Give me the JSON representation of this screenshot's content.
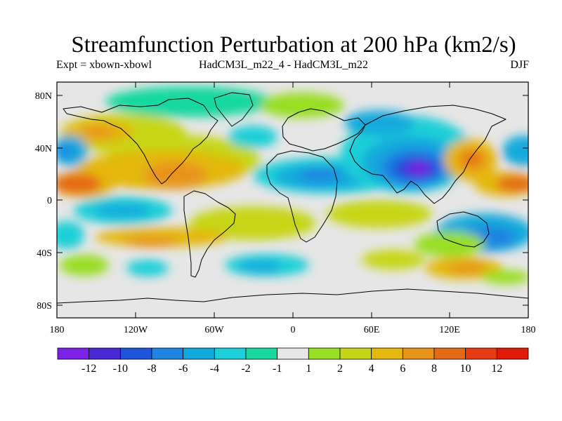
{
  "title": "Streamfunction Perturbation at 200 hPa (km2/s)",
  "subtitle": {
    "left": "Expt = xbown-xbowl",
    "center": "HadCM3L_m22_4 - HadCM3L_m22",
    "right": "DJF"
  },
  "axes": {
    "lat_labels": [
      "80N",
      "40N",
      "0",
      "40S",
      "80S"
    ],
    "lon_labels": [
      "180",
      "120W",
      "60W",
      "0",
      "60E",
      "120E",
      "180"
    ]
  },
  "colorbar": {
    "labels": [
      "-12",
      "-10",
      "-8",
      "-6",
      "-4",
      "-2",
      "-1",
      "1",
      "2",
      "4",
      "6",
      "8",
      "10",
      "12"
    ],
    "colors": [
      "#7b22e6",
      "#4a2ad6",
      "#1f55d9",
      "#1e85e2",
      "#12aadc",
      "#1ccfd8",
      "#18d8a0",
      "#e6e6e6",
      "#98de24",
      "#c6d617",
      "#e4b80f",
      "#e8941a",
      "#e56a14",
      "#e63a10",
      "#e01a0a"
    ]
  },
  "chart_data": {
    "type": "heatmap",
    "title": "Streamfunction Perturbation at 200 hPa (km2/s)",
    "projection": "cylindrical equidistant",
    "lon_range": [
      -180,
      180
    ],
    "lat_range": [
      -90,
      90
    ],
    "contour_levels": [
      -12,
      -10,
      -8,
      -6,
      -4,
      -2,
      -1,
      1,
      2,
      4,
      6,
      8,
      10,
      12
    ],
    "units": "km2/s",
    "season": "DJF",
    "features": [
      {
        "name": "south-asia-min",
        "lon": 95,
        "lat": 25,
        "value": -13
      },
      {
        "name": "tropical-atlantic-africa-low",
        "lon": 15,
        "lat": 18,
        "value": -6
      },
      {
        "name": "north-pacific-min",
        "lon": 175,
        "lat": 38,
        "value": -6
      },
      {
        "name": "north-atlantic-min",
        "lon": -25,
        "lat": 42,
        "value": -4
      },
      {
        "name": "north-pacific-high",
        "lon": -155,
        "lat": 50,
        "value": 5
      },
      {
        "name": "east-pacific-high",
        "lon": -170,
        "lat": 12,
        "value": 8
      },
      {
        "name": "central-america-high",
        "lon": -95,
        "lat": 18,
        "value": 8
      },
      {
        "name": "japan-high",
        "lon": 135,
        "lat": 32,
        "value": 8
      },
      {
        "name": "central-pacific-high",
        "lon": 160,
        "lat": 12,
        "value": 8
      },
      {
        "name": "south-pacific-low",
        "lon": -145,
        "lat": -10,
        "value": -4
      },
      {
        "name": "south-atlantic-low",
        "lon": -40,
        "lat": -48,
        "value": -4
      },
      {
        "name": "south-indian-low",
        "lon": 120,
        "lat": -25,
        "value": -6
      },
      {
        "name": "south-ocean-high",
        "lon": 140,
        "lat": -45,
        "value": 6
      }
    ]
  }
}
